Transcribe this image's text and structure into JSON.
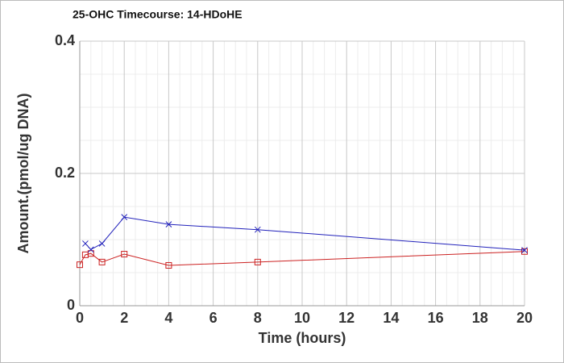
{
  "chart_data": {
    "type": "line",
    "title": "25-OHC Timecourse: 14-HDoHE",
    "x_label": "Time (hours)",
    "y_label": "Amount.(pmol/ug DNA)",
    "x": [
      0,
      0.25,
      0.5,
      1,
      2,
      4,
      8,
      20
    ],
    "series": [
      {
        "color": "#cc2222",
        "marker": "square",
        "values": [
          0.062,
          0.077,
          0.079,
          0.066,
          0.078,
          0.061,
          0.066,
          0.082
        ]
      },
      {
        "color": "#2222bb",
        "marker": "x",
        "values": [
          null,
          0.094,
          0.085,
          0.094,
          0.134,
          0.123,
          0.115,
          0.084
        ]
      }
    ],
    "xlim": [
      0,
      20
    ],
    "xticks": [
      0,
      2,
      4,
      6,
      8,
      10,
      12,
      14,
      16,
      18,
      20
    ],
    "ylim": [
      0,
      0.4
    ],
    "yticks": [
      0,
      0.2,
      0.4
    ],
    "grid": true
  }
}
